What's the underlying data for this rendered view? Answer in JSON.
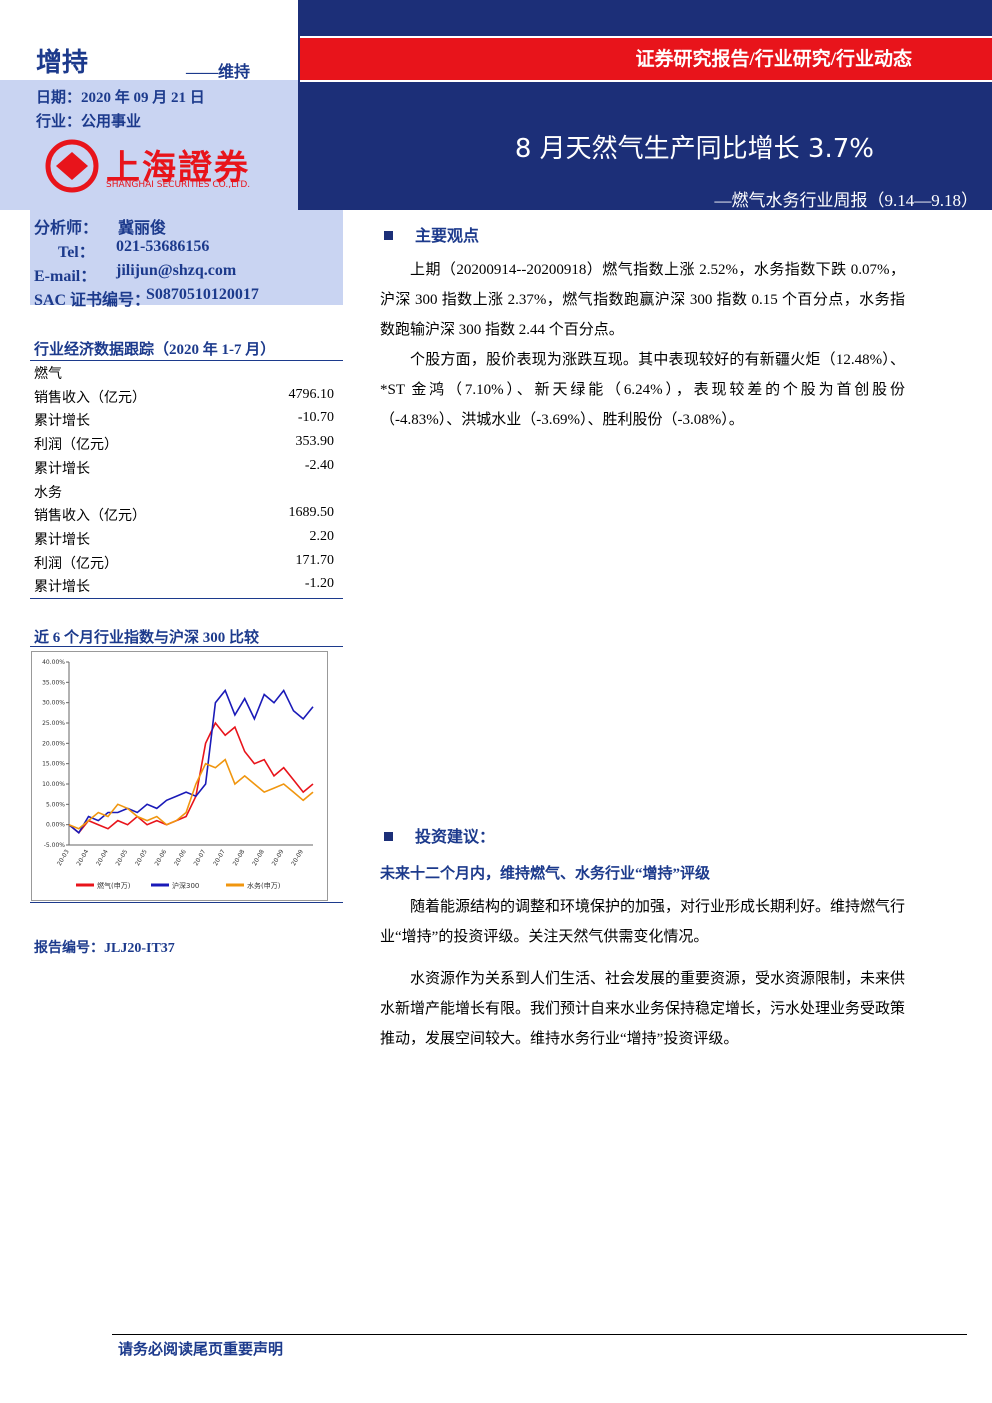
{
  "header": {
    "rating": "增持",
    "rating_prev": "——维持",
    "date": "日期：2020 年 09 月 21 日",
    "industry": "行业：公用事业",
    "logo_cn": "上海證券",
    "logo_en": "SHANGHAI SECURITIES CO.,LTD.",
    "category": "证券研究报告/行业研究/行业动态",
    "title": "8 月天然气生产同比增长 3.7%",
    "subtitle": "—燃气水务行业周报（9.14—9.18）"
  },
  "analyst": {
    "rows": [
      [
        "分析师：",
        "冀丽俊"
      ],
      [
        "Tel：",
        "021-53686156"
      ],
      [
        "E-mail：",
        "jilijun@shzq.com"
      ],
      [
        "SAC 证书编号：",
        "S0870510120017"
      ]
    ]
  },
  "table": {
    "title": "行业经济数据跟踪（2020 年 1-7 月）",
    "rows": [
      [
        "燃气"
      ],
      [
        "销售收入（亿元）",
        "4796.10"
      ],
      [
        "累计增长",
        "-10.70"
      ],
      [
        "利润（亿元）",
        "353.90"
      ],
      [
        "累计增长",
        "-2.40"
      ],
      [
        "水务"
      ],
      [
        "销售收入（亿元）",
        "1689.50"
      ],
      [
        "累计增长",
        "2.20"
      ],
      [
        "利润（亿元）",
        "171.70"
      ],
      [
        "累计增长",
        "-1.20"
      ]
    ]
  },
  "chart_title": "近 6 个月行业指数与沪深 300 比较",
  "report_no": {
    "label": "报告编号：",
    "value": "JLJ20-IT37"
  },
  "body": {
    "section1": "主要观点",
    "p1": "上期（20200914--20200918）燃气指数上涨 2.52%，水务指数下跌 0.07%，沪深 300 指数上涨 2.37%，燃气指数跑赢沪深 300 指数 0.15 个百分点，水务指数跑输沪深 300 指数 2.44 个百分点。",
    "p2": "个股方面，股价表现为涨跌互现。其中表现较好的有新疆火炬（12.48%）、*ST 金鸿（7.10%）、新天绿能（6.24%），表现较差的个股为首创股份（-4.83%）、洪城水业（-3.69%）、胜利股份（-3.08%）。",
    "section2": "投资建议：",
    "sub2": "未来十二个月内，维持燃气、水务行业“增持”评级",
    "p3": "随着能源结构的调整和环境保护的加强，对行业形成长期利好。维持燃气行业“增持”的投资评级。关注天然气供需变化情况。",
    "p4": "水资源作为关系到人们生活、社会发展的重要资源，受水资源限制，未来供水新增产能增长有限。我们预计自来水业务保持稳定增长，污水处理业务受政策推动，发展空间较大。维持水务行业“增持”投资评级。"
  },
  "footer": "请务必阅读尾页重要声明",
  "chart_data": {
    "type": "line",
    "categories": [
      "20-03",
      null,
      "20-04",
      null,
      "20-04",
      null,
      "20-05",
      null,
      "20-05",
      null,
      "20-06",
      null,
      "20-06",
      null,
      "20-07",
      null,
      "20-07",
      null,
      "20-08",
      null,
      "20-08",
      null,
      "20-09",
      null,
      "20-09",
      null
    ],
    "series": [
      {
        "name": "燃气(申万)",
        "color": "#e8141b",
        "values": [
          0,
          -2,
          1,
          0,
          -1,
          1,
          0,
          2,
          0,
          1,
          0,
          1,
          2,
          7,
          20,
          25,
          22,
          24,
          18,
          15,
          16,
          12,
          14,
          11,
          8,
          10
        ]
      },
      {
        "name": "沪深300",
        "color": "#1a1ab8",
        "values": [
          0,
          -2,
          2,
          1,
          3,
          3,
          4,
          3,
          5,
          4,
          6,
          7,
          8,
          7,
          10,
          30,
          33,
          27,
          31,
          26,
          32,
          30,
          33,
          28,
          26,
          29
        ]
      },
      {
        "name": "水务(申万)",
        "color": "#f0960f",
        "values": [
          0,
          -1,
          1,
          3,
          2,
          5,
          4,
          2,
          1,
          2,
          0,
          1,
          3,
          10,
          15,
          14,
          16,
          10,
          12,
          10,
          8,
          9,
          10,
          8,
          6,
          8
        ]
      }
    ],
    "ylim": [
      -5,
      40
    ],
    "yticks": [
      {
        "value": -5,
        "label": "-5.00%"
      },
      {
        "value": 0,
        "label": "0.00%"
      },
      {
        "value": 5,
        "label": "5.00%"
      },
      {
        "value": 10,
        "label": "10.00%"
      },
      {
        "value": 15,
        "label": "15.00%"
      },
      {
        "value": 20,
        "label": "20.00%"
      },
      {
        "value": 25,
        "label": "25.00%"
      },
      {
        "value": 30,
        "label": "30.00%"
      },
      {
        "value": 35,
        "label": "35.00%"
      },
      {
        "value": 40,
        "label": "40.00%"
      }
    ],
    "grid": false
  }
}
